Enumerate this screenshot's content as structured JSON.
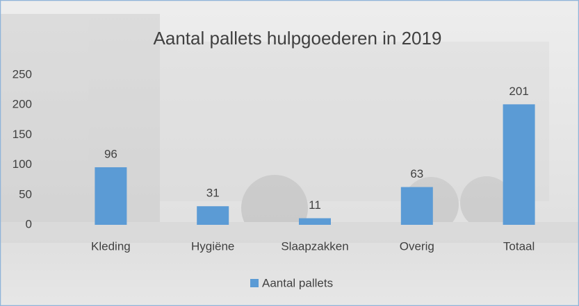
{
  "chart_data": {
    "type": "bar",
    "title": "Aantal pallets hulpgoederen in 2019",
    "categories": [
      "Kleding",
      "Hygiëne",
      "Slaapzakken",
      "Overig",
      "Totaal"
    ],
    "series": [
      {
        "name": "Aantal pallets",
        "color": "#5b9bd5",
        "values": [
          96,
          31,
          11,
          63,
          201
        ]
      }
    ],
    "ylim": [
      0,
      250
    ],
    "yticks": [
      0,
      50,
      100,
      150,
      200,
      250
    ],
    "grid": false,
    "legend": "bottom"
  }
}
